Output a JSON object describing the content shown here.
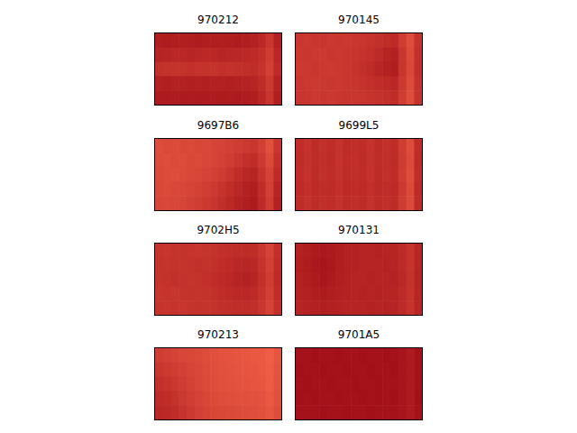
{
  "chart_data": [
    {
      "type": "heatmap",
      "title": "970212",
      "color": "Reds",
      "tick_labels": false,
      "cells": [
        [
          72,
          73,
          72,
          71,
          72,
          73,
          72,
          72,
          71,
          72,
          73,
          72,
          70,
          66,
          56,
          70
        ],
        [
          68,
          67,
          66,
          66,
          67,
          66,
          65,
          66,
          67,
          66,
          66,
          65,
          64,
          60,
          52,
          66
        ],
        [
          60,
          59,
          58,
          59,
          60,
          58,
          59,
          58,
          60,
          59,
          60,
          61,
          62,
          58,
          50,
          64
        ],
        [
          70,
          71,
          70,
          70,
          71,
          70,
          71,
          70,
          70,
          71,
          70,
          69,
          68,
          63,
          54,
          69
        ],
        [
          74,
          74,
          73,
          74,
          73,
          74,
          74,
          73,
          74,
          73,
          74,
          73,
          72,
          66,
          57,
          72
        ]
      ]
    },
    {
      "type": "heatmap",
      "title": "970145",
      "color": "Reds",
      "tick_labels": false,
      "cells": [
        [
          56,
          55,
          56,
          57,
          55,
          56,
          55,
          56,
          57,
          58,
          60,
          62,
          64,
          52,
          42,
          58
        ],
        [
          55,
          56,
          55,
          54,
          56,
          55,
          56,
          57,
          58,
          60,
          64,
          68,
          70,
          56,
          44,
          60
        ],
        [
          54,
          55,
          56,
          55,
          54,
          55,
          56,
          58,
          60,
          63,
          67,
          70,
          72,
          57,
          45,
          61
        ],
        [
          56,
          55,
          54,
          55,
          56,
          55,
          56,
          57,
          58,
          60,
          62,
          64,
          66,
          54,
          43,
          59
        ],
        [
          57,
          56,
          55,
          56,
          55,
          56,
          57,
          56,
          57,
          58,
          59,
          60,
          62,
          52,
          42,
          58
        ]
      ]
    },
    {
      "type": "heatmap",
      "title": "9697B6",
      "color": "Reds",
      "tick_labels": false,
      "cells": [
        [
          42,
          44,
          43,
          45,
          44,
          46,
          45,
          47,
          48,
          50,
          52,
          54,
          56,
          50,
          40,
          56
        ],
        [
          43,
          42,
          44,
          43,
          45,
          44,
          46,
          47,
          49,
          52,
          56,
          60,
          62,
          54,
          44,
          60
        ],
        [
          44,
          43,
          42,
          44,
          45,
          46,
          48,
          50,
          53,
          57,
          62,
          66,
          68,
          58,
          48,
          64
        ],
        [
          45,
          44,
          45,
          46,
          47,
          49,
          51,
          54,
          58,
          62,
          66,
          70,
          72,
          62,
          50,
          68
        ],
        [
          46,
          45,
          46,
          47,
          49,
          51,
          54,
          57,
          61,
          65,
          69,
          72,
          74,
          64,
          52,
          70
        ]
      ]
    },
    {
      "type": "heatmap",
      "title": "9699L5",
      "color": "Reds",
      "tick_labels": false,
      "cells": [
        [
          62,
          58,
          63,
          60,
          62,
          59,
          63,
          61,
          62,
          58,
          63,
          60,
          62,
          52,
          42,
          62
        ],
        [
          63,
          59,
          62,
          61,
          63,
          58,
          62,
          60,
          63,
          59,
          62,
          61,
          63,
          53,
          43,
          63
        ],
        [
          62,
          58,
          63,
          60,
          62,
          59,
          63,
          61,
          62,
          58,
          63,
          60,
          62,
          52,
          42,
          62
        ],
        [
          64,
          60,
          64,
          62,
          63,
          60,
          64,
          62,
          64,
          60,
          64,
          62,
          64,
          54,
          44,
          64
        ],
        [
          63,
          59,
          63,
          61,
          62,
          59,
          63,
          61,
          63,
          59,
          63,
          61,
          63,
          53,
          43,
          63
        ]
      ]
    },
    {
      "type": "heatmap",
      "title": "9702H5",
      "color": "Reds",
      "tick_labels": false,
      "cells": [
        [
          58,
          57,
          58,
          59,
          58,
          57,
          58,
          59,
          60,
          61,
          62,
          63,
          62,
          56,
          48,
          60
        ],
        [
          59,
          58,
          59,
          58,
          59,
          60,
          59,
          60,
          62,
          64,
          66,
          67,
          66,
          58,
          50,
          62
        ],
        [
          58,
          59,
          60,
          59,
          58,
          59,
          60,
          62,
          64,
          66,
          68,
          70,
          68,
          60,
          52,
          64
        ],
        [
          57,
          58,
          57,
          58,
          59,
          58,
          59,
          60,
          62,
          64,
          65,
          66,
          64,
          58,
          50,
          62
        ],
        [
          58,
          57,
          58,
          57,
          58,
          59,
          58,
          59,
          60,
          61,
          62,
          62,
          61,
          56,
          48,
          60
        ]
      ]
    },
    {
      "type": "heatmap",
      "title": "970131",
      "color": "Reds",
      "tick_labels": false,
      "cells": [
        [
          70,
          72,
          74,
          76,
          74,
          72,
          70,
          69,
          68,
          68,
          69,
          68,
          68,
          64,
          58,
          67
        ],
        [
          71,
          73,
          76,
          78,
          75,
          72,
          70,
          69,
          68,
          68,
          68,
          69,
          68,
          64,
          58,
          67
        ],
        [
          70,
          72,
          74,
          77,
          74,
          71,
          70,
          68,
          68,
          69,
          68,
          68,
          69,
          65,
          59,
          68
        ],
        [
          69,
          70,
          72,
          74,
          72,
          70,
          69,
          68,
          69,
          68,
          69,
          68,
          68,
          64,
          58,
          67
        ],
        [
          68,
          69,
          70,
          71,
          70,
          69,
          68,
          68,
          68,
          69,
          68,
          69,
          68,
          64,
          58,
          67
        ]
      ]
    },
    {
      "type": "heatmap",
      "title": "970213",
      "color": "Reds",
      "tick_labels": false,
      "cells": [
        [
          52,
          50,
          48,
          46,
          45,
          44,
          42,
          40,
          38,
          37,
          36,
          35,
          34,
          33,
          30,
          36
        ],
        [
          56,
          54,
          52,
          49,
          47,
          45,
          43,
          41,
          39,
          38,
          37,
          36,
          35,
          34,
          31,
          37
        ],
        [
          60,
          58,
          55,
          52,
          49,
          46,
          44,
          42,
          40,
          39,
          38,
          37,
          36,
          35,
          32,
          38
        ],
        [
          64,
          62,
          59,
          55,
          51,
          48,
          46,
          44,
          42,
          41,
          40,
          40,
          39,
          38,
          34,
          40
        ],
        [
          66,
          65,
          62,
          58,
          54,
          50,
          48,
          46,
          45,
          44,
          43,
          42,
          41,
          40,
          36,
          42
        ]
      ]
    },
    {
      "type": "heatmap",
      "title": "9701A5",
      "color": "Reds",
      "tick_labels": false,
      "cells": [
        [
          80,
          80,
          81,
          80,
          80,
          81,
          80,
          80,
          81,
          80,
          80,
          81,
          80,
          78,
          74,
          80
        ],
        [
          81,
          80,
          80,
          81,
          80,
          80,
          81,
          80,
          80,
          81,
          80,
          80,
          81,
          78,
          74,
          80
        ],
        [
          80,
          81,
          80,
          80,
          81,
          80,
          80,
          81,
          80,
          80,
          81,
          80,
          80,
          78,
          74,
          80
        ],
        [
          81,
          80,
          81,
          80,
          80,
          81,
          80,
          80,
          81,
          80,
          81,
          80,
          81,
          78,
          74,
          81
        ],
        [
          80,
          80,
          80,
          81,
          80,
          80,
          81,
          80,
          80,
          81,
          80,
          80,
          80,
          78,
          74,
          80
        ]
      ]
    }
  ]
}
